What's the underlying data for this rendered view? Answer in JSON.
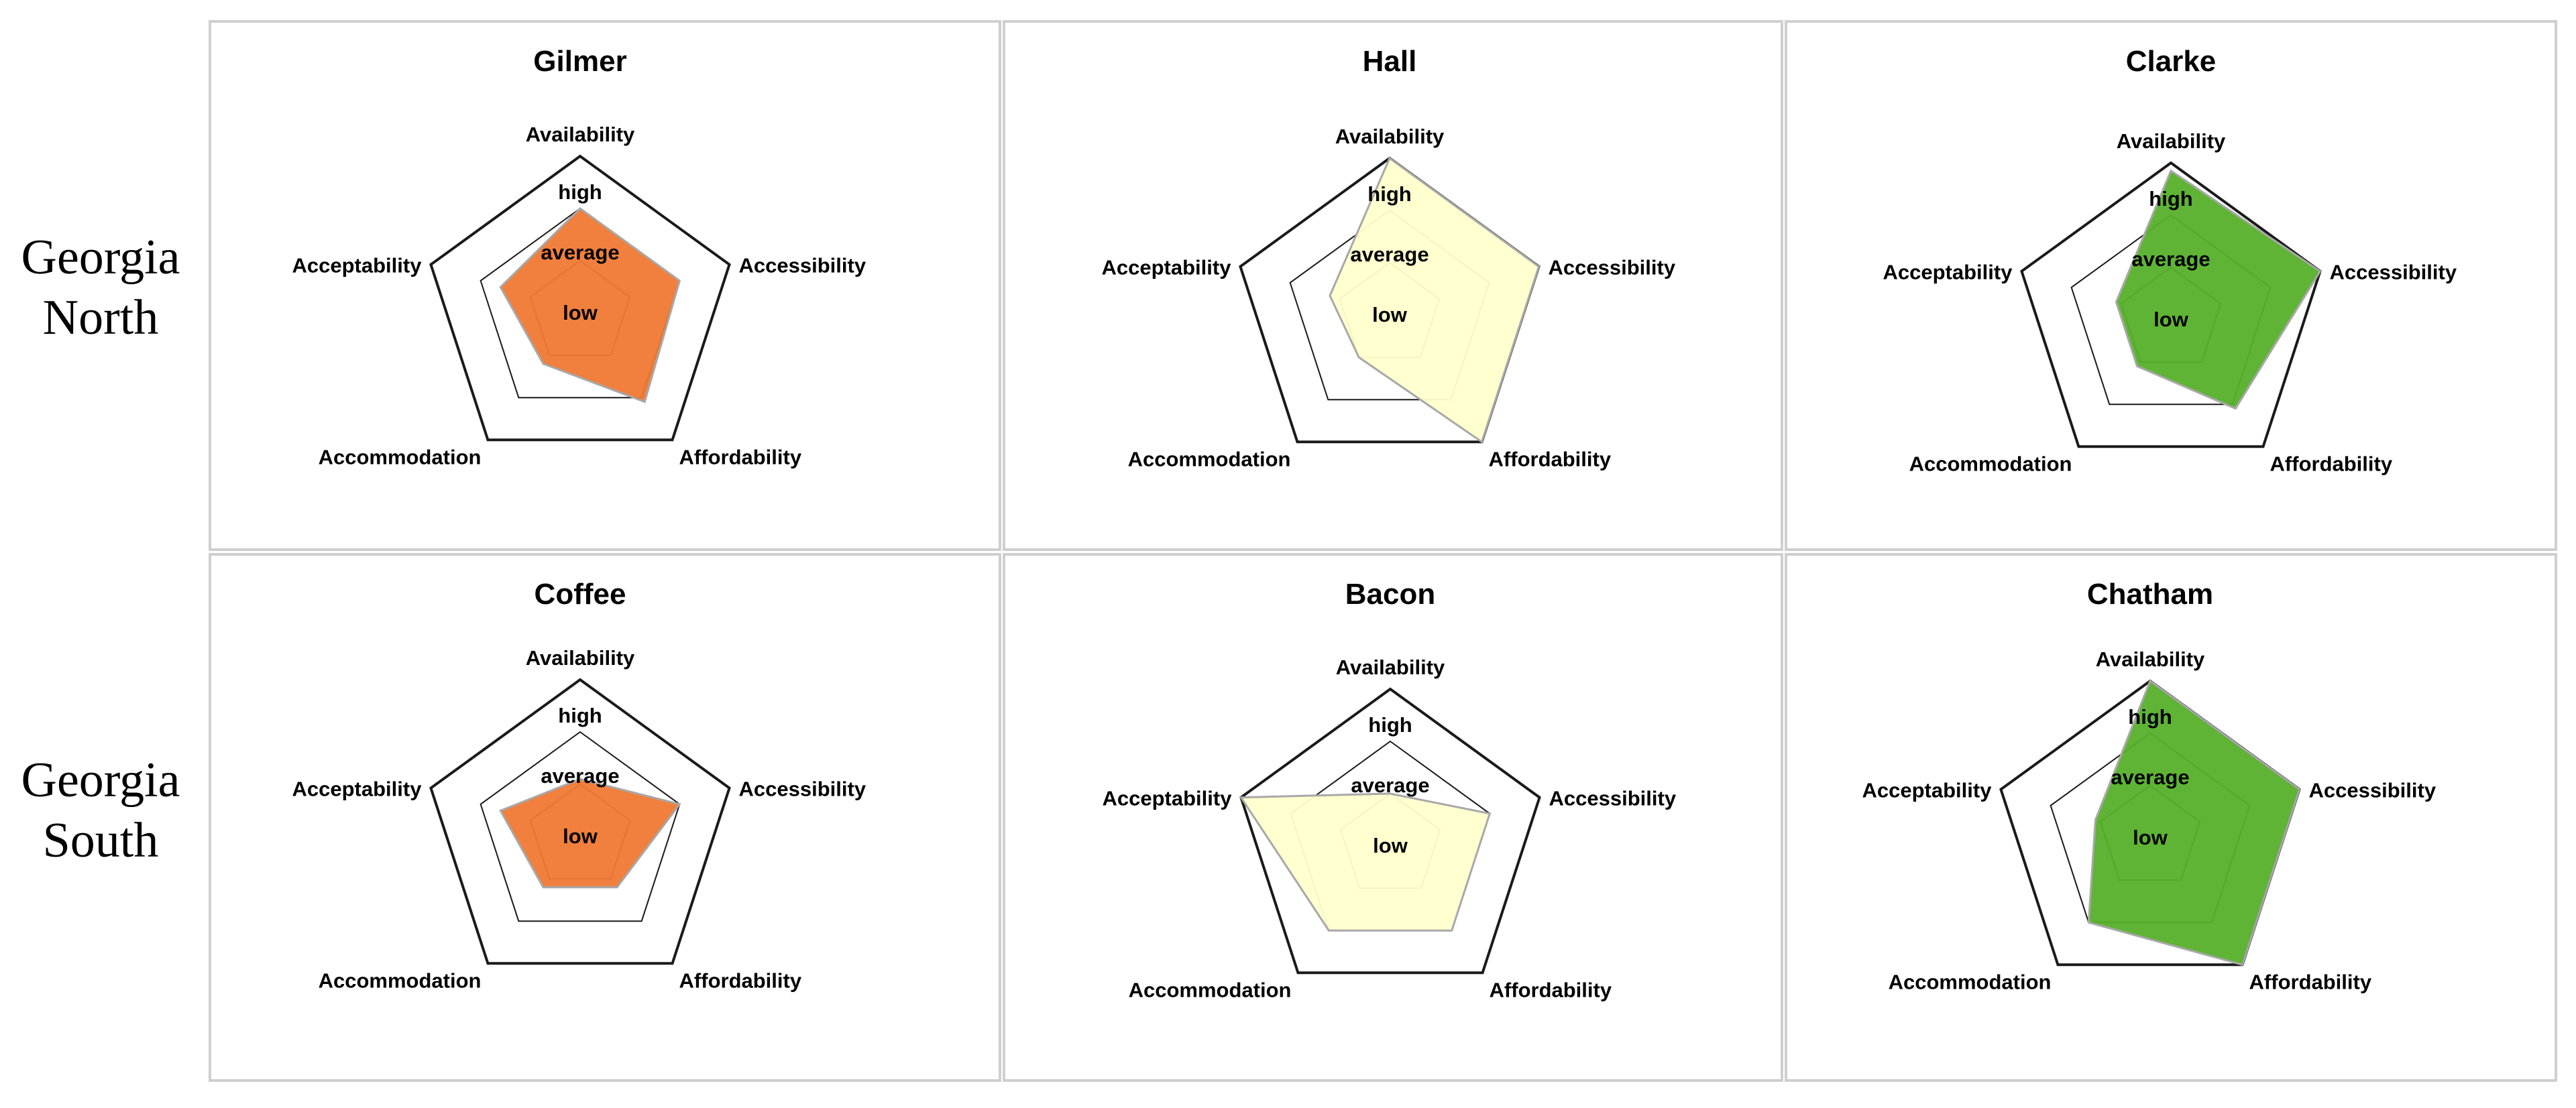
{
  "row_labels": [
    [
      "Georgia",
      "North"
    ],
    [
      "Georgia",
      "South"
    ]
  ],
  "chart_data": [
    {
      "type": "radar",
      "title": "Gilmer",
      "axes": [
        "Availability",
        "Accessibility",
        "Affordability",
        "Accommodation",
        "Acceptability"
      ],
      "levels": [
        "low",
        "average",
        "high"
      ],
      "values": [
        2.0,
        2.0,
        2.1,
        1.2,
        1.6
      ],
      "range": [
        0,
        3
      ],
      "color": "#f07833"
    },
    {
      "type": "radar",
      "title": "Hall",
      "axes": [
        "Availability",
        "Accessibility",
        "Affordability",
        "Accommodation",
        "Acceptability"
      ],
      "levels": [
        "low",
        "average",
        "high"
      ],
      "values": [
        3.0,
        3.0,
        3.0,
        1.0,
        1.2
      ],
      "range": [
        0,
        3
      ],
      "color": "#ffffcc"
    },
    {
      "type": "radar",
      "title": "Clarke",
      "axes": [
        "Availability",
        "Accessibility",
        "Affordability",
        "Accommodation",
        "Acceptability"
      ],
      "levels": [
        "low",
        "average",
        "high"
      ],
      "values": [
        2.85,
        3.0,
        2.1,
        1.1,
        1.1
      ],
      "range": [
        0,
        3
      ],
      "color": "#56b02a"
    },
    {
      "type": "radar",
      "title": "Coffee",
      "axes": [
        "Availability",
        "Accessibility",
        "Affordability",
        "Accommodation",
        "Acceptability"
      ],
      "levels": [
        "low",
        "average",
        "high"
      ],
      "values": [
        1.1,
        2.0,
        1.2,
        1.2,
        1.6
      ],
      "range": [
        0,
        3
      ],
      "color": "#f07833"
    },
    {
      "type": "radar",
      "title": "Bacon",
      "axes": [
        "Availability",
        "Accessibility",
        "Affordability",
        "Accommodation",
        "Acceptability"
      ],
      "levels": [
        "low",
        "average",
        "high"
      ],
      "values": [
        1.0,
        2.0,
        2.0,
        2.0,
        3.0
      ],
      "range": [
        0,
        3
      ],
      "color": "#ffffcc"
    },
    {
      "type": "radar",
      "title": "Chatham",
      "axes": [
        "Availability",
        "Accessibility",
        "Affordability",
        "Accommodation",
        "Acceptability"
      ],
      "levels": [
        "low",
        "average",
        "high"
      ],
      "values": [
        3.0,
        3.0,
        3.0,
        2.0,
        1.1
      ],
      "range": [
        0,
        3
      ],
      "color": "#56b02a"
    }
  ]
}
